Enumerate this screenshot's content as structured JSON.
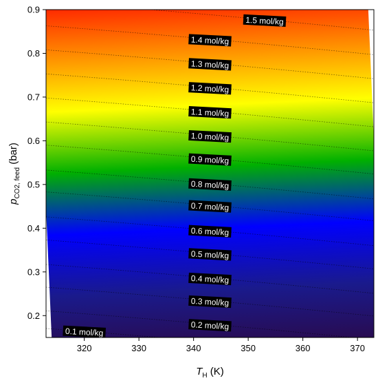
{
  "chart_data": {
    "type": "heatmap",
    "xlabel": "T",
    "xlabel_sub": "H",
    "xlabel_unit": " (K)",
    "ylabel": "p",
    "ylabel_sub": "CO2, feed",
    "ylabel_unit": " (bar)",
    "xlim": [
      313,
      373
    ],
    "ylim": [
      0.15,
      0.9
    ],
    "x_ticks": [
      320,
      330,
      340,
      350,
      360,
      370
    ],
    "y_ticks": [
      0.2,
      0.3,
      0.4,
      0.5,
      0.6,
      0.7,
      0.8,
      0.9
    ],
    "grid": false,
    "colormap": [
      "#2a0a4a",
      "#1a1a8c",
      "#0000ff",
      "#00b000",
      "#ffff00",
      "#ff8000",
      "#ff0000"
    ],
    "contours": [
      {
        "label": "0.1 mol/kg",
        "level": 0.1,
        "label_x": 320,
        "label_y": 0.163
      },
      {
        "label": "0.2 mol/kg",
        "level": 0.2,
        "label_x": 343,
        "label_y": 0.178
      },
      {
        "label": "0.3 mol/kg",
        "level": 0.3,
        "label_x": 343,
        "label_y": 0.232
      },
      {
        "label": "0.4 mol/kg",
        "level": 0.4,
        "label_x": 343,
        "label_y": 0.284
      },
      {
        "label": "0.5 mol/kg",
        "level": 0.5,
        "label_x": 343,
        "label_y": 0.34
      },
      {
        "label": "0.6 mol/kg",
        "level": 0.6,
        "label_x": 343,
        "label_y": 0.393
      },
      {
        "label": "0.7 mol/kg",
        "level": 0.7,
        "label_x": 343,
        "label_y": 0.45
      },
      {
        "label": "0.8 mol/kg",
        "level": 0.8,
        "label_x": 343,
        "label_y": 0.5
      },
      {
        "label": "0.9 mol/kg",
        "level": 0.9,
        "label_x": 343,
        "label_y": 0.557
      },
      {
        "label": "1.0 mol/kg",
        "level": 1.0,
        "label_x": 343,
        "label_y": 0.61
      },
      {
        "label": "1.1 mol/kg",
        "level": 1.1,
        "label_x": 343,
        "label_y": 0.665
      },
      {
        "label": "1.2 mol/kg",
        "level": 1.2,
        "label_x": 343,
        "label_y": 0.72
      },
      {
        "label": "1.3 mol/kg",
        "level": 1.3,
        "label_x": 343,
        "label_y": 0.775
      },
      {
        "label": "1.4 mol/kg",
        "level": 1.4,
        "label_x": 343,
        "label_y": 0.83
      },
      {
        "label": "1.5 mol/kg",
        "level": 1.5,
        "label_x": 353,
        "label_y": 0.875
      }
    ]
  }
}
